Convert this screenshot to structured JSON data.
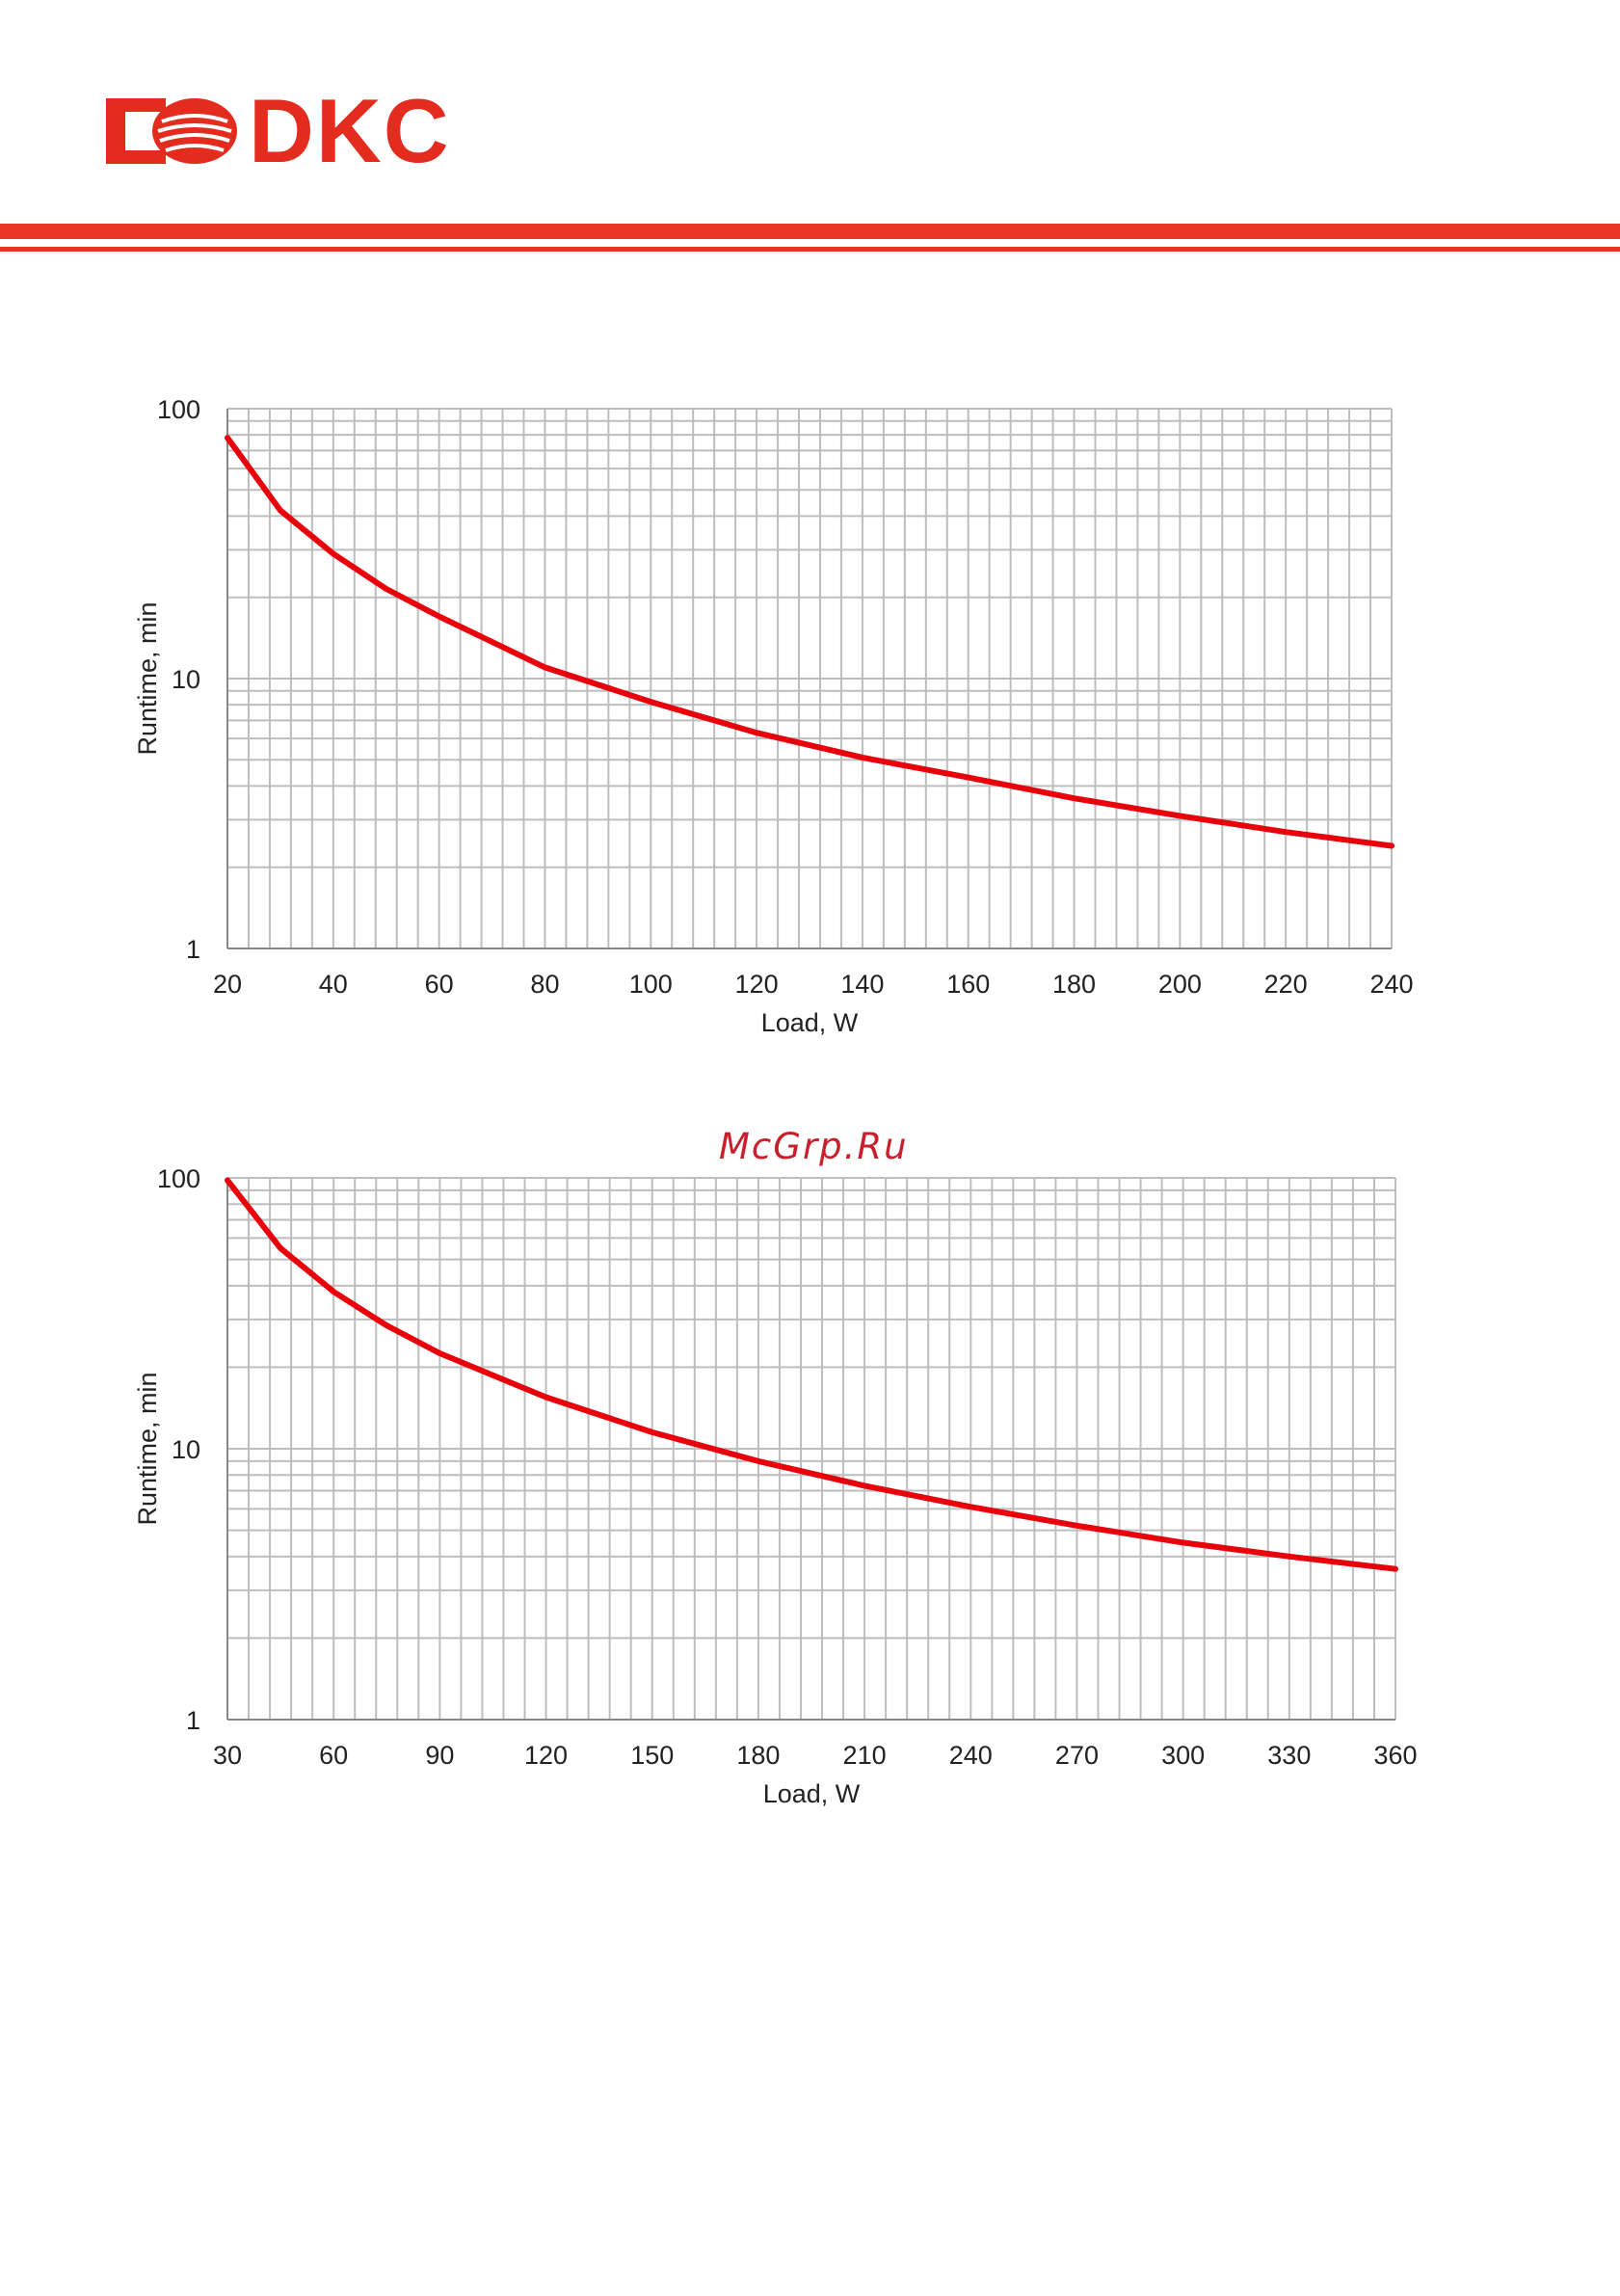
{
  "header": {
    "brand": "DKC",
    "accent_color": "#e83524"
  },
  "watermark": {
    "text": "McGrp.Ru"
  },
  "chart_data": [
    {
      "type": "line",
      "xlabel": "Load, W",
      "ylabel": "Runtime, min",
      "y_scale": "log",
      "xlim": [
        20,
        240
      ],
      "ylim": [
        1,
        100
      ],
      "x_ticks": [
        20,
        40,
        60,
        80,
        100,
        120,
        140,
        160,
        180,
        200,
        220,
        240
      ],
      "y_ticks": [
        1,
        10,
        100
      ],
      "grid": true,
      "series": [
        {
          "color": "#e8000b",
          "x": [
            20,
            30,
            40,
            50,
            60,
            80,
            100,
            120,
            140,
            160,
            180,
            200,
            220,
            240
          ],
          "y": [
            78,
            42,
            29,
            21.5,
            17,
            11,
            8.2,
            6.3,
            5.1,
            4.3,
            3.6,
            3.1,
            2.7,
            2.4
          ]
        }
      ]
    },
    {
      "type": "line",
      "xlabel": "Load, W",
      "ylabel": "Runtime, min",
      "y_scale": "log",
      "xlim": [
        30,
        360
      ],
      "ylim": [
        1,
        100
      ],
      "x_ticks": [
        30,
        60,
        90,
        120,
        150,
        180,
        210,
        240,
        270,
        300,
        330,
        360
      ],
      "y_ticks": [
        1,
        10,
        100
      ],
      "grid": true,
      "series": [
        {
          "color": "#e8000b",
          "x": [
            30,
            45,
            60,
            75,
            90,
            120,
            150,
            180,
            210,
            240,
            270,
            300,
            330,
            360
          ],
          "y": [
            98,
            55,
            38,
            28.5,
            22.5,
            15.5,
            11.5,
            9,
            7.3,
            6.1,
            5.2,
            4.5,
            4,
            3.6
          ]
        }
      ]
    }
  ]
}
